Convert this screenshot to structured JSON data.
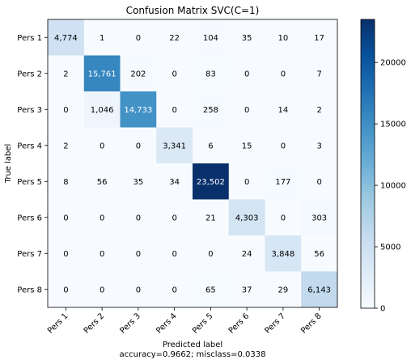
{
  "chart_data": {
    "type": "heatmap",
    "title": "Confusion Matrix SVC(C=1)",
    "xlabel": "Predicted label",
    "xlabel2": "accuracy=0.9662; misclass=0.0338",
    "ylabel": "True label",
    "x_categories": [
      "Pers 1",
      "Pers 2",
      "Pers 3",
      "Pers 4",
      "Pers 5",
      "Pers 6",
      "Pers 7",
      "Pers 8"
    ],
    "y_categories": [
      "Pers 1",
      "Pers 2",
      "Pers 3",
      "Pers 4",
      "Pers 5",
      "Pers 6",
      "Pers 7",
      "Pers 8"
    ],
    "values": [
      [
        4774,
        1,
        0,
        22,
        104,
        35,
        10,
        17
      ],
      [
        2,
        15761,
        202,
        0,
        83,
        0,
        0,
        7
      ],
      [
        0,
        1046,
        14733,
        0,
        258,
        0,
        14,
        2
      ],
      [
        2,
        0,
        0,
        3341,
        6,
        15,
        0,
        3
      ],
      [
        8,
        56,
        35,
        34,
        23502,
        0,
        177,
        0
      ],
      [
        0,
        0,
        0,
        0,
        21,
        4303,
        0,
        303
      ],
      [
        0,
        0,
        0,
        0,
        0,
        24,
        3848,
        56
      ],
      [
        0,
        0,
        0,
        0,
        65,
        37,
        29,
        6143
      ]
    ],
    "cell_labels": [
      [
        "4,774",
        "1",
        "0",
        "22",
        "104",
        "35",
        "10",
        "17"
      ],
      [
        "2",
        "15,761",
        "202",
        "0",
        "83",
        "0",
        "0",
        "7"
      ],
      [
        "0",
        "1,046",
        "14,733",
        "0",
        "258",
        "0",
        "14",
        "2"
      ],
      [
        "2",
        "0",
        "0",
        "3,341",
        "6",
        "15",
        "0",
        "3"
      ],
      [
        "8",
        "56",
        "35",
        "34",
        "23,502",
        "0",
        "177",
        "0"
      ],
      [
        "0",
        "0",
        "0",
        "0",
        "21",
        "4,303",
        "0",
        "303"
      ],
      [
        "0",
        "0",
        "0",
        "0",
        "0",
        "24",
        "3,848",
        "56"
      ],
      [
        "0",
        "0",
        "0",
        "0",
        "65",
        "37",
        "29",
        "6,143"
      ]
    ],
    "colormap": "Blues",
    "color_min": 0,
    "color_max": 23502,
    "colorbar_ticks": [
      0,
      5000,
      10000,
      15000,
      20000
    ],
    "colorbar_tick_labels": [
      "0",
      "5000",
      "10000",
      "15000",
      "20000"
    ],
    "grid": false
  }
}
